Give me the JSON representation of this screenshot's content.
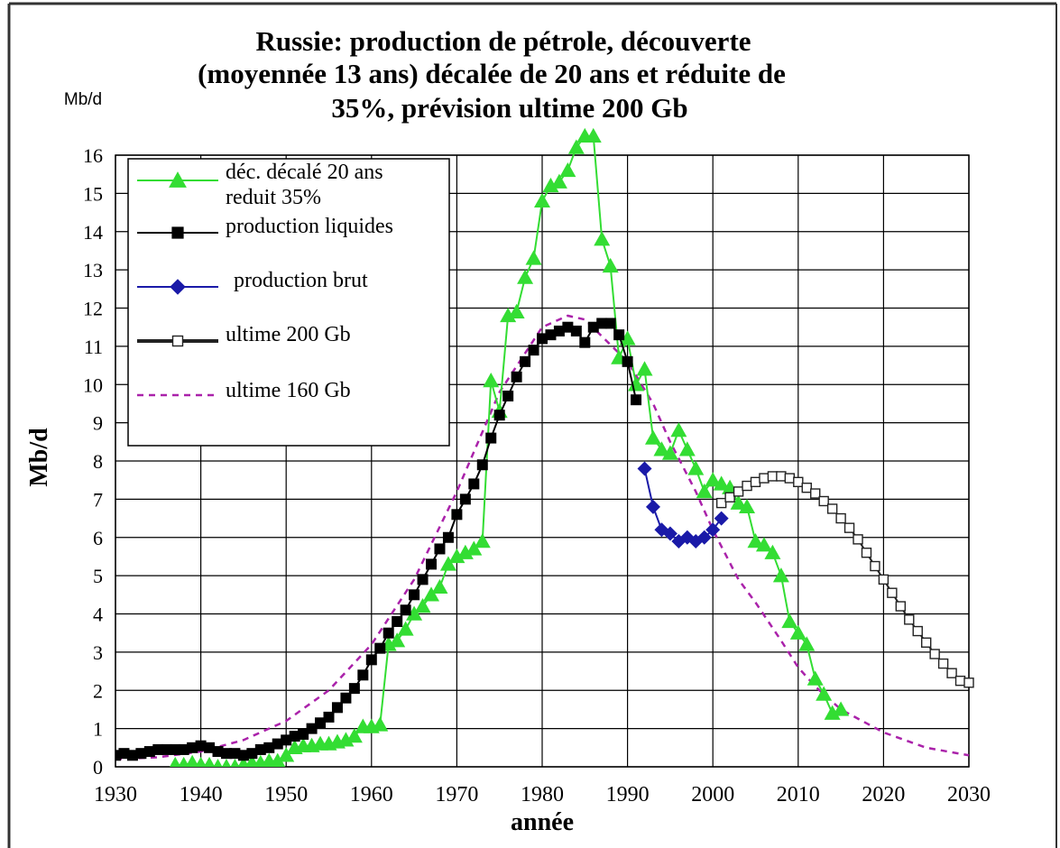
{
  "chart_data": {
    "type": "line",
    "title": "Russie: production de pétrole, découverte (moyennée 13 ans) décalée de 20 ans et réduite de 35%, prévision ultime 200 Gb",
    "title_lines": [
      "Russie: production de pétrole, découverte",
      "(moyennée 13 ans) décalée de 20 ans et réduite de",
      "35%, prévision ultime 200 Gb"
    ],
    "unit_label": "Mb/d",
    "xlabel": "année",
    "ylabel": "Mb/d",
    "xlim": [
      1930,
      2030
    ],
    "ylim": [
      0,
      16
    ],
    "x_ticks": [
      1930,
      1940,
      1950,
      1960,
      1970,
      1980,
      1990,
      2000,
      2010,
      2020,
      2030
    ],
    "y_ticks": [
      0,
      1,
      2,
      3,
      4,
      5,
      6,
      7,
      8,
      9,
      10,
      11,
      12,
      13,
      14,
      15,
      16
    ],
    "grid": true,
    "legend_position": "top-left",
    "series": [
      {
        "name": "déc. décalé 20 ans reduit 35%",
        "legend_lines": [
          "déc. décalé 20 ans",
          "reduit 35%"
        ],
        "color": "#33dd33",
        "marker": "triangle",
        "points": [
          [
            1937,
            0.05
          ],
          [
            1938,
            0.05
          ],
          [
            1939,
            0.1
          ],
          [
            1940,
            0.05
          ],
          [
            1941,
            0.05
          ],
          [
            1942,
            0.0
          ],
          [
            1943,
            0.0
          ],
          [
            1944,
            0.0
          ],
          [
            1945,
            0.05
          ],
          [
            1946,
            0.1
          ],
          [
            1947,
            0.1
          ],
          [
            1948,
            0.15
          ],
          [
            1949,
            0.15
          ],
          [
            1950,
            0.3
          ],
          [
            1951,
            0.5
          ],
          [
            1952,
            0.55
          ],
          [
            1953,
            0.55
          ],
          [
            1954,
            0.6
          ],
          [
            1955,
            0.6
          ],
          [
            1956,
            0.65
          ],
          [
            1957,
            0.7
          ],
          [
            1958,
            0.8
          ],
          [
            1959,
            1.05
          ],
          [
            1960,
            1.05
          ],
          [
            1961,
            1.1
          ],
          [
            1962,
            3.2
          ],
          [
            1963,
            3.3
          ],
          [
            1964,
            3.6
          ],
          [
            1965,
            4.0
          ],
          [
            1966,
            4.2
          ],
          [
            1967,
            4.5
          ],
          [
            1968,
            4.7
          ],
          [
            1969,
            5.3
          ],
          [
            1970,
            5.5
          ],
          [
            1971,
            5.6
          ],
          [
            1972,
            5.7
          ],
          [
            1973,
            5.9
          ],
          [
            1974,
            10.1
          ],
          [
            1975,
            9.3
          ],
          [
            1976,
            11.8
          ],
          [
            1977,
            11.9
          ],
          [
            1978,
            12.8
          ],
          [
            1979,
            13.3
          ],
          [
            1980,
            14.8
          ],
          [
            1981,
            15.2
          ],
          [
            1982,
            15.3
          ],
          [
            1983,
            15.6
          ],
          [
            1984,
            16.2
          ],
          [
            1985,
            16.5
          ],
          [
            1986,
            16.5
          ],
          [
            1987,
            13.8
          ],
          [
            1988,
            13.1
          ],
          [
            1989,
            10.7
          ],
          [
            1990,
            11.2
          ],
          [
            1991,
            10.0
          ],
          [
            1992,
            10.4
          ],
          [
            1993,
            8.6
          ],
          [
            1994,
            8.3
          ],
          [
            1995,
            8.2
          ],
          [
            1996,
            8.8
          ],
          [
            1997,
            8.3
          ],
          [
            1998,
            7.8
          ],
          [
            1999,
            7.2
          ],
          [
            2000,
            7.5
          ],
          [
            2001,
            7.4
          ],
          [
            2002,
            7.3
          ],
          [
            2003,
            6.9
          ],
          [
            2004,
            6.8
          ],
          [
            2005,
            5.9
          ],
          [
            2006,
            5.8
          ],
          [
            2007,
            5.6
          ],
          [
            2008,
            5.0
          ],
          [
            2009,
            3.8
          ],
          [
            2010,
            3.5
          ],
          [
            2011,
            3.2
          ],
          [
            2012,
            2.3
          ],
          [
            2013,
            1.9
          ],
          [
            2014,
            1.4
          ],
          [
            2015,
            1.5
          ]
        ]
      },
      {
        "name": "production liquides",
        "legend_lines": [
          "production liquides"
        ],
        "color": "#000000",
        "marker": "square",
        "points": [
          [
            1930,
            0.3
          ],
          [
            1931,
            0.35
          ],
          [
            1932,
            0.3
          ],
          [
            1933,
            0.35
          ],
          [
            1934,
            0.4
          ],
          [
            1935,
            0.45
          ],
          [
            1936,
            0.45
          ],
          [
            1937,
            0.45
          ],
          [
            1938,
            0.45
          ],
          [
            1939,
            0.5
          ],
          [
            1940,
            0.55
          ],
          [
            1941,
            0.5
          ],
          [
            1942,
            0.4
          ],
          [
            1943,
            0.35
          ],
          [
            1944,
            0.35
          ],
          [
            1945,
            0.3
          ],
          [
            1946,
            0.35
          ],
          [
            1947,
            0.45
          ],
          [
            1948,
            0.5
          ],
          [
            1949,
            0.6
          ],
          [
            1950,
            0.7
          ],
          [
            1951,
            0.8
          ],
          [
            1952,
            0.85
          ],
          [
            1953,
            1.0
          ],
          [
            1954,
            1.15
          ],
          [
            1955,
            1.3
          ],
          [
            1956,
            1.55
          ],
          [
            1957,
            1.8
          ],
          [
            1958,
            2.05
          ],
          [
            1959,
            2.4
          ],
          [
            1960,
            2.8
          ],
          [
            1961,
            3.1
          ],
          [
            1962,
            3.5
          ],
          [
            1963,
            3.8
          ],
          [
            1964,
            4.1
          ],
          [
            1965,
            4.5
          ],
          [
            1966,
            4.9
          ],
          [
            1967,
            5.3
          ],
          [
            1968,
            5.7
          ],
          [
            1969,
            6.0
          ],
          [
            1970,
            6.6
          ],
          [
            1971,
            7.0
          ],
          [
            1972,
            7.4
          ],
          [
            1973,
            7.9
          ],
          [
            1974,
            8.6
          ],
          [
            1975,
            9.2
          ],
          [
            1976,
            9.7
          ],
          [
            1977,
            10.2
          ],
          [
            1978,
            10.6
          ],
          [
            1979,
            10.9
          ],
          [
            1980,
            11.2
          ],
          [
            1981,
            11.3
          ],
          [
            1982,
            11.4
          ],
          [
            1983,
            11.5
          ],
          [
            1984,
            11.4
          ],
          [
            1985,
            11.1
          ],
          [
            1986,
            11.5
          ],
          [
            1987,
            11.6
          ],
          [
            1988,
            11.6
          ],
          [
            1989,
            11.3
          ],
          [
            1990,
            10.6
          ],
          [
            1991,
            9.6
          ]
        ]
      },
      {
        "name": "production brut",
        "legend_lines": [
          "production brut"
        ],
        "color": "#1a1aa8",
        "marker": "diamond",
        "points": [
          [
            1992,
            7.8
          ],
          [
            1993,
            6.8
          ],
          [
            1994,
            6.2
          ],
          [
            1995,
            6.1
          ],
          [
            1996,
            5.9
          ],
          [
            1997,
            6.0
          ],
          [
            1998,
            5.9
          ],
          [
            1999,
            6.0
          ],
          [
            2000,
            6.2
          ],
          [
            2001,
            6.5
          ]
        ]
      },
      {
        "name": "ultime 200 Gb",
        "legend_lines": [
          "ultime 200 Gb"
        ],
        "color": "#222222",
        "marker": "open-square",
        "points": [
          [
            2001,
            6.9
          ],
          [
            2002,
            7.05
          ],
          [
            2003,
            7.2
          ],
          [
            2004,
            7.35
          ],
          [
            2005,
            7.45
          ],
          [
            2006,
            7.55
          ],
          [
            2007,
            7.6
          ],
          [
            2008,
            7.6
          ],
          [
            2009,
            7.55
          ],
          [
            2010,
            7.45
          ],
          [
            2011,
            7.3
          ],
          [
            2012,
            7.15
          ],
          [
            2013,
            6.95
          ],
          [
            2014,
            6.75
          ],
          [
            2015,
            6.5
          ],
          [
            2016,
            6.25
          ],
          [
            2017,
            5.95
          ],
          [
            2018,
            5.6
          ],
          [
            2019,
            5.25
          ],
          [
            2020,
            4.9
          ],
          [
            2021,
            4.55
          ],
          [
            2022,
            4.2
          ],
          [
            2023,
            3.85
          ],
          [
            2024,
            3.55
          ],
          [
            2025,
            3.25
          ],
          [
            2026,
            2.95
          ],
          [
            2027,
            2.7
          ],
          [
            2028,
            2.45
          ],
          [
            2029,
            2.25
          ],
          [
            2030,
            2.2
          ]
        ]
      },
      {
        "name": "ultime 160 Gb",
        "legend_lines": [
          "ultime 160 Gb"
        ],
        "color": "#aa22aa",
        "marker": "dashed",
        "points": [
          [
            1930,
            0.2
          ],
          [
            1935,
            0.25
          ],
          [
            1940,
            0.4
          ],
          [
            1945,
            0.7
          ],
          [
            1950,
            1.2
          ],
          [
            1955,
            2.0
          ],
          [
            1960,
            3.2
          ],
          [
            1965,
            4.9
          ],
          [
            1970,
            7.2
          ],
          [
            1975,
            9.8
          ],
          [
            1980,
            11.5
          ],
          [
            1983,
            11.8
          ],
          [
            1985,
            11.7
          ],
          [
            1990,
            10.6
          ],
          [
            1993,
            9.5
          ],
          [
            1995,
            8.5
          ],
          [
            1998,
            7.2
          ],
          [
            2000,
            6.2
          ],
          [
            2003,
            4.9
          ],
          [
            2005,
            4.3
          ],
          [
            2008,
            3.3
          ],
          [
            2010,
            2.6
          ],
          [
            2012,
            2.1
          ],
          [
            2015,
            1.5
          ],
          [
            2020,
            0.9
          ],
          [
            2025,
            0.5
          ],
          [
            2030,
            0.3
          ]
        ]
      }
    ]
  }
}
